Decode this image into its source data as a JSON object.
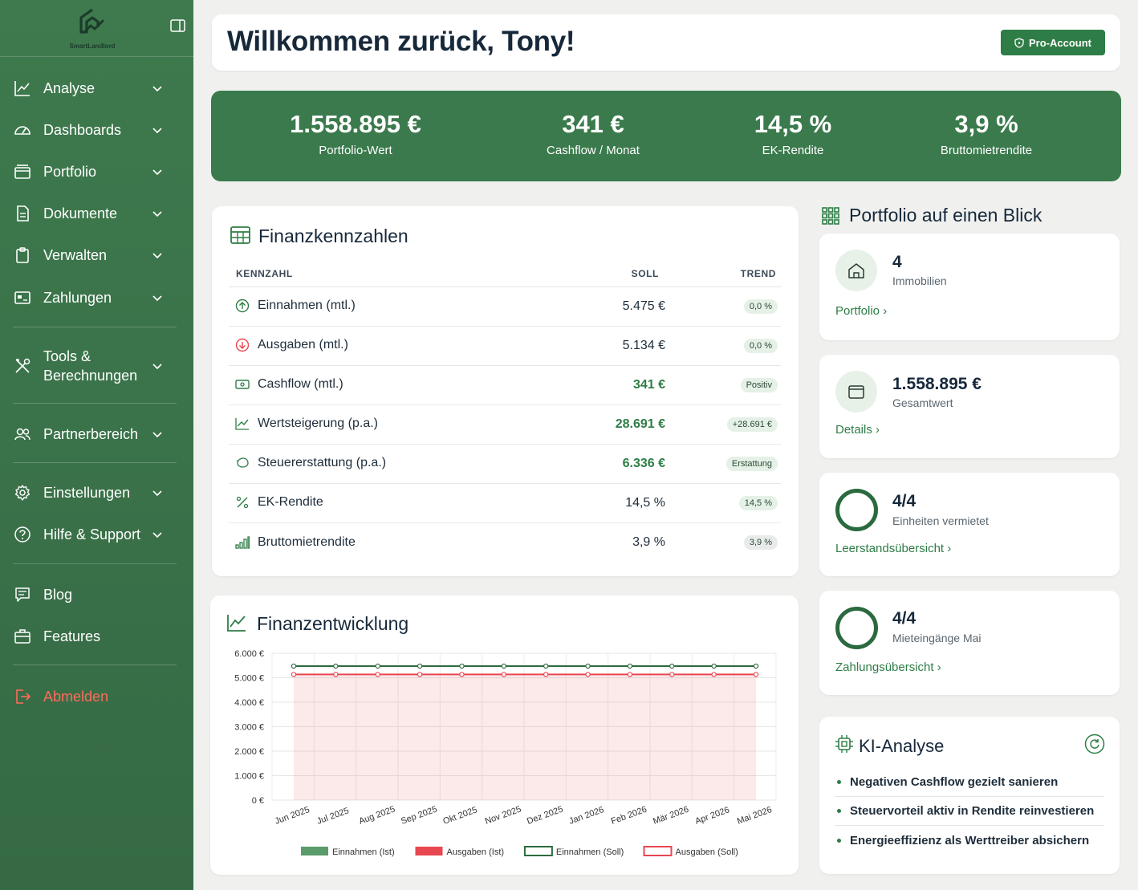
{
  "brand": {
    "name": "SmartLandlord"
  },
  "colors": {
    "primary": "#3a7a4c",
    "accent": "#2e7d46",
    "danger": "#e8474f",
    "logout": "#ff6b5b"
  },
  "sidebar": {
    "items": [
      {
        "label": "Analyse",
        "icon": "chart-line-icon",
        "expandable": true
      },
      {
        "label": "Dashboards",
        "icon": "gauge-icon",
        "expandable": true
      },
      {
        "label": "Portfolio",
        "icon": "folder-icon",
        "expandable": true
      },
      {
        "label": "Dokumente",
        "icon": "document-icon",
        "expandable": true
      },
      {
        "label": "Verwalten",
        "icon": "clipboard-icon",
        "expandable": true
      },
      {
        "label": "Zahlungen",
        "icon": "payment-icon",
        "expandable": true
      },
      {
        "label": "Tools &",
        "label2": "Berechnungen",
        "icon": "tools-icon",
        "expandable": true
      },
      {
        "label": "Partnerbereich",
        "icon": "users-icon",
        "expandable": true
      },
      {
        "label": "Einstellungen",
        "icon": "gear-icon",
        "expandable": true
      },
      {
        "label": "Hilfe & Support",
        "icon": "help-icon",
        "expandable": true
      },
      {
        "label": "Blog",
        "icon": "chat-icon",
        "expandable": false
      },
      {
        "label": "Features",
        "icon": "briefcase-icon",
        "expandable": false
      },
      {
        "label": "Abmelden",
        "icon": "logout-icon",
        "expandable": false
      }
    ]
  },
  "header": {
    "title": "Willkommen zurück, Tony!",
    "pro_label": "Pro-Account"
  },
  "kpis": [
    {
      "value": "1.558.895 €",
      "label": "Portfolio-Wert"
    },
    {
      "value": "341 €",
      "label": "Cashflow / Monat"
    },
    {
      "value": "14,5 %",
      "label": "EK-Rendite"
    },
    {
      "value": "3,9 %",
      "label": "Bruttomietrendite"
    }
  ],
  "finanzkennzahlen": {
    "title": "Finanzkennzahlen",
    "columns": {
      "name": "KENNZAHL",
      "soll": "SOLL",
      "trend": "TREND"
    },
    "rows": [
      {
        "name": "Einnahmen (mtl.)",
        "soll": "5.475 €",
        "trend": "0,0 %",
        "icon": "arrow-up-circle-icon",
        "highlight": false,
        "trend_style": "green"
      },
      {
        "name": "Ausgaben (mtl.)",
        "soll": "5.134 €",
        "trend": "0,0 %",
        "icon": "arrow-down-circle-icon",
        "highlight": false,
        "trend_style": "green"
      },
      {
        "name": "Cashflow (mtl.)",
        "soll": "341 €",
        "trend": "Positiv",
        "icon": "cash-icon",
        "highlight": true,
        "trend_style": "green"
      },
      {
        "name": "Wertsteigerung (p.a.)",
        "soll": "28.691 €",
        "trend": "+28.691 €",
        "icon": "trend-up-icon",
        "highlight": true,
        "trend_style": "green"
      },
      {
        "name": "Steuererstattung (p.a.)",
        "soll": "6.336 €",
        "trend": "Erstattung",
        "icon": "piggy-bank-icon",
        "highlight": true,
        "trend_style": "green"
      },
      {
        "name": "EK-Rendite",
        "soll": "14,5 %",
        "trend": "14,5 %",
        "icon": "percent-icon",
        "highlight": false,
        "trend_style": "green"
      },
      {
        "name": "Bruttomietrendite",
        "soll": "3,9 %",
        "trend": "3,9 %",
        "icon": "bars-icon",
        "highlight": false,
        "trend_style": "grey"
      }
    ]
  },
  "finanzentwicklung": {
    "title": "Finanzentwicklung"
  },
  "chart_data": {
    "type": "line",
    "x": [
      "Jun 2025",
      "Jul 2025",
      "Aug 2025",
      "Sep 2025",
      "Okt 2025",
      "Nov 2025",
      "Dez 2025",
      "Jan 2026",
      "Feb 2026",
      "Mär 2026",
      "Apr 2026",
      "Mai 2026"
    ],
    "y_ticks": [
      "6.000 €",
      "5.000 €",
      "4.000 €",
      "3.000 €",
      "2.000 €",
      "1.000 €",
      "0 €"
    ],
    "ylim": [
      0,
      6000
    ],
    "grid": true,
    "legend_position": "bottom",
    "series": [
      {
        "name": "Einnahmen (Ist)",
        "style": "filled",
        "color": "#5a9b6b",
        "values": [
          0,
          0,
          0,
          0,
          0,
          0,
          0,
          0,
          0,
          0,
          0,
          0
        ]
      },
      {
        "name": "Ausgaben (Ist)",
        "style": "filled",
        "color": "#e8474f",
        "values": [
          5134,
          5134,
          5134,
          5134,
          5134,
          5134,
          5134,
          5134,
          5134,
          5134,
          5134,
          5134
        ]
      },
      {
        "name": "Einnahmen (Soll)",
        "style": "line",
        "color": "#2e6b3f",
        "values": [
          5475,
          5475,
          5475,
          5475,
          5475,
          5475,
          5475,
          5475,
          5475,
          5475,
          5475,
          5475
        ]
      },
      {
        "name": "Ausgaben (Soll)",
        "style": "line",
        "color": "#e8474f",
        "values": [
          5134,
          5134,
          5134,
          5134,
          5134,
          5134,
          5134,
          5134,
          5134,
          5134,
          5134,
          5134
        ]
      }
    ]
  },
  "glance": {
    "title": "Portfolio auf einen Blick",
    "cards": [
      {
        "value": "4",
        "sub": "Immobilien",
        "link": "Portfolio ›",
        "kind": "icon",
        "icon": "house-icon"
      },
      {
        "value": "1.558.895 €",
        "sub": "Gesamtwert",
        "link": "Details ›",
        "kind": "icon",
        "icon": "wallet-icon"
      },
      {
        "value": "4/4",
        "sub": "Einheiten vermietet",
        "link": "Leerstandsübersicht ›",
        "kind": "ring",
        "progress": 1
      },
      {
        "value": "4/4",
        "sub": "Mieteingänge Mai",
        "link": "Zahlungsübersicht ›",
        "kind": "ring",
        "progress": 1
      }
    ]
  },
  "ki": {
    "title": "KI-Analyse",
    "items": [
      "Negativen Cashflow gezielt sanieren",
      "Steuervorteil aktiv in Rendite reinvestieren",
      "Energieeffizienz als Werttreiber absichern"
    ]
  }
}
